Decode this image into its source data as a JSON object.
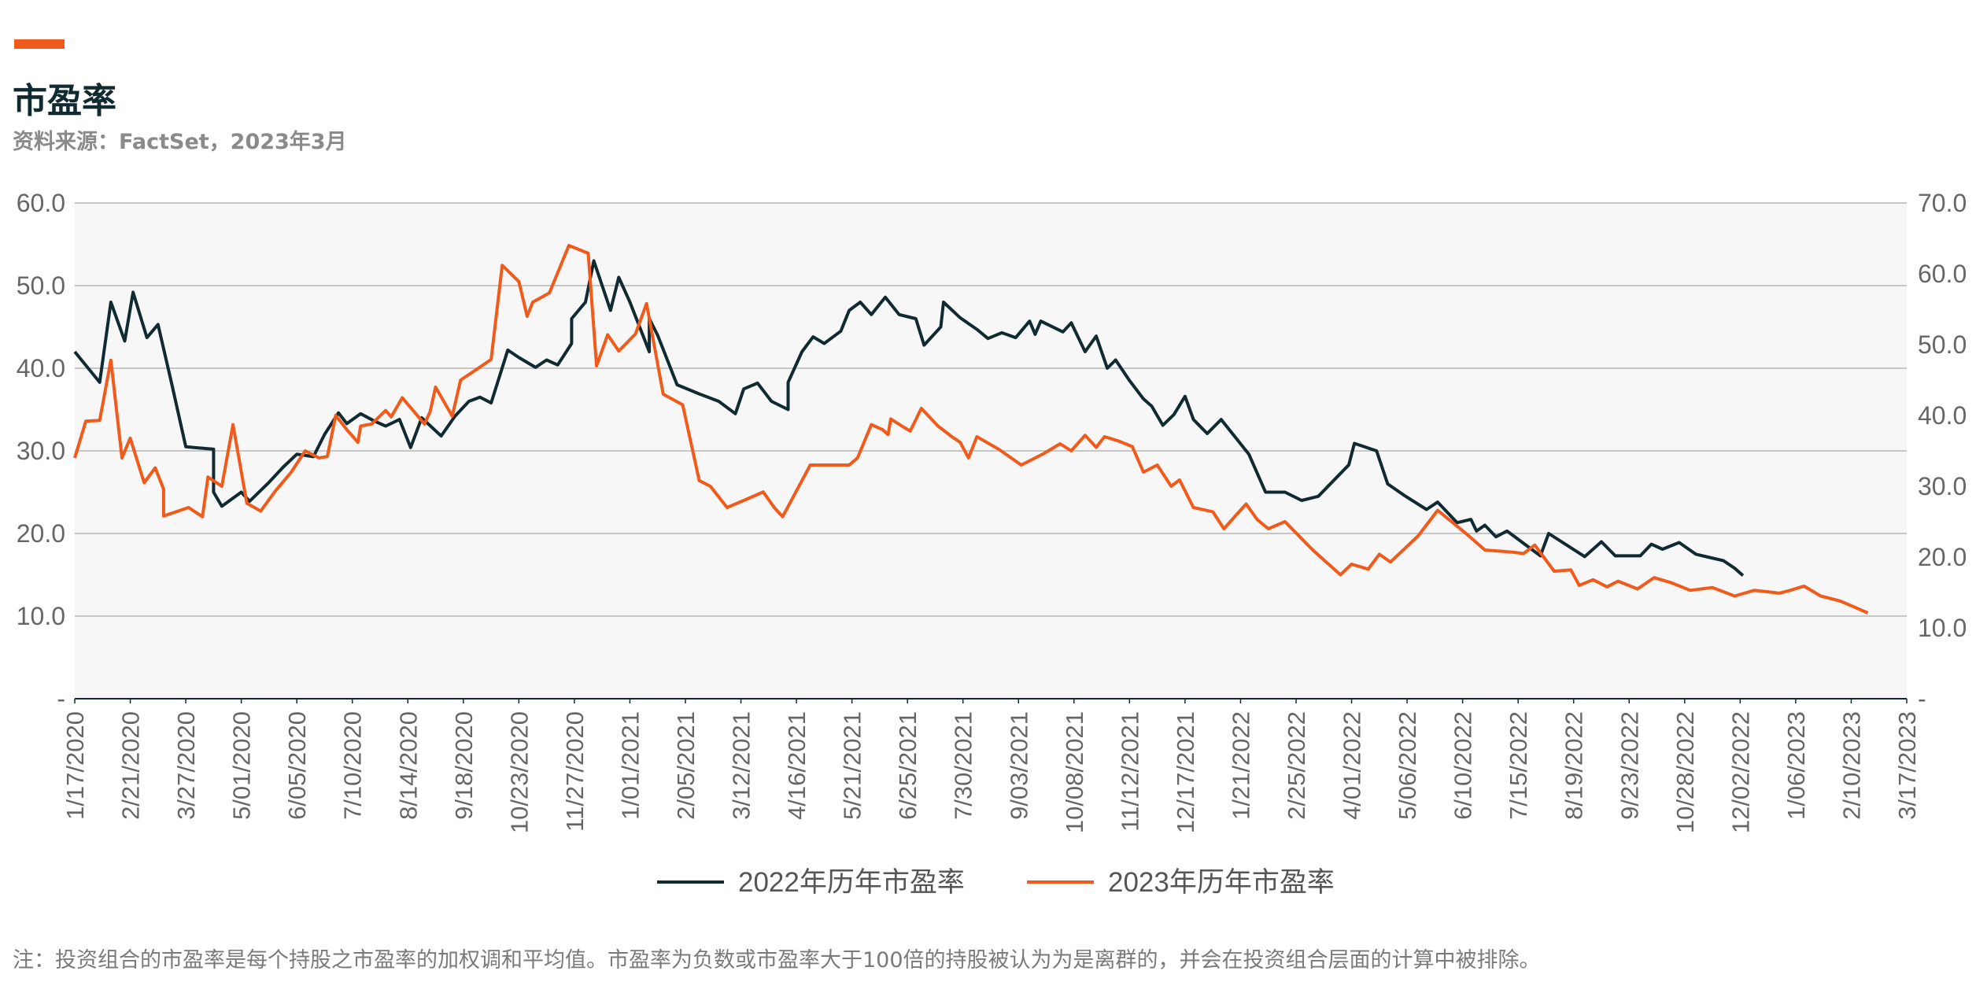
{
  "header": {
    "title": "市盈率",
    "source": "资料来源：FactSet，2023年3月"
  },
  "footnote": "注：投资组合的市盈率是每个持股之市盈率的加权调和平均值。市盈率为负数或市盈率大于100倍的持股被认为为是离群的，并会在投资组合层面的计算中被排除。",
  "colors": {
    "accent": "#f05a1a",
    "series_2022": "#0f2a30",
    "series_2023": "#f05a1a",
    "plot_bg": "#f6f7f6",
    "grid": "#b5b5b5"
  },
  "chart_data": {
    "type": "line",
    "x_ticks": [
      "1/17/2020",
      "2/21/2020",
      "3/27/2020",
      "5/01/2020",
      "6/05/2020",
      "7/10/2020",
      "8/14/2020",
      "9/18/2020",
      "10/23/2020",
      "11/27/2020",
      "1/01/2021",
      "2/05/2021",
      "3/12/2021",
      "4/16/2021",
      "5/21/2021",
      "6/25/2021",
      "7/30/2021",
      "9/03/2021",
      "10/08/2021",
      "11/12/2021",
      "12/17/2021",
      "1/21/2022",
      "2/25/2022",
      "4/01/2022",
      "5/06/2022",
      "6/10/2022",
      "7/15/2022",
      "8/19/2022",
      "9/23/2022",
      "10/28/2022",
      "12/02/2022",
      "1/06/2023",
      "2/10/2023",
      "3/17/2023"
    ],
    "y_left": {
      "range": [
        0,
        60
      ],
      "ticks": [
        "-",
        "10.0",
        "20.0",
        "30.0",
        "40.0",
        "50.0",
        "60.0"
      ]
    },
    "y_right": {
      "range": [
        0,
        70
      ],
      "ticks": [
        "-",
        "10.0",
        "20.0",
        "30.0",
        "40.0",
        "50.0",
        "60.0",
        "70.0"
      ]
    },
    "grid": true,
    "legend_position": "bottom-center",
    "series": [
      {
        "name": "2022年历年市盈率",
        "axis": "left",
        "color": "#0f2a30",
        "points": [
          [
            0,
            42
          ],
          [
            0.9,
            38.3
          ],
          [
            1.3,
            48
          ],
          [
            1.8,
            43.3
          ],
          [
            2.1,
            49.2
          ],
          [
            2.6,
            43.7
          ],
          [
            3.0,
            45.3
          ],
          [
            3.5,
            38
          ],
          [
            4.0,
            30.5
          ],
          [
            5.0,
            30.2
          ],
          [
            5.0,
            25
          ],
          [
            5.3,
            23.3
          ],
          [
            6.0,
            25
          ],
          [
            6.3,
            23.9
          ],
          [
            7.0,
            26.2
          ],
          [
            7.5,
            28
          ],
          [
            8.0,
            29.6
          ],
          [
            8.6,
            29.3
          ],
          [
            9.0,
            32
          ],
          [
            9.5,
            34.6
          ],
          [
            9.8,
            33.3
          ],
          [
            10.3,
            34.5
          ],
          [
            10.8,
            33.6
          ],
          [
            11.2,
            33
          ],
          [
            11.7,
            33.8
          ],
          [
            12.1,
            30.4
          ],
          [
            12.5,
            34
          ],
          [
            13.2,
            31.8
          ],
          [
            13.7,
            34.2
          ],
          [
            14.2,
            36
          ],
          [
            14.6,
            36.5
          ],
          [
            15.0,
            35.8
          ],
          [
            15.6,
            42.2
          ],
          [
            16.0,
            41.3
          ],
          [
            16.6,
            40.1
          ],
          [
            17.0,
            41
          ],
          [
            17.4,
            40.4
          ],
          [
            17.9,
            43
          ],
          [
            17.9,
            46
          ],
          [
            18.4,
            48
          ],
          [
            18.7,
            53
          ],
          [
            19.3,
            47
          ],
          [
            19.6,
            51
          ],
          [
            20.0,
            48
          ],
          [
            20.7,
            42
          ],
          [
            20.7,
            46
          ],
          [
            21.0,
            44
          ],
          [
            21.7,
            38
          ],
          [
            22.5,
            36.9
          ],
          [
            23.2,
            36
          ],
          [
            23.8,
            34.5
          ],
          [
            24.1,
            37.5
          ],
          [
            24.6,
            38.2
          ],
          [
            25.1,
            36
          ],
          [
            25.7,
            35
          ],
          [
            25.7,
            38.3
          ],
          [
            26.2,
            42
          ],
          [
            26.6,
            43.8
          ],
          [
            27.0,
            43
          ],
          [
            27.6,
            44.5
          ],
          [
            27.9,
            47
          ],
          [
            28.3,
            48
          ],
          [
            28.7,
            46.5
          ],
          [
            29.2,
            48.6
          ],
          [
            29.7,
            46.5
          ],
          [
            30.3,
            46
          ],
          [
            30.6,
            42.8
          ],
          [
            31.2,
            45
          ],
          [
            31.3,
            48
          ],
          [
            31.9,
            46.1
          ],
          [
            32.5,
            44.7
          ],
          [
            32.9,
            43.6
          ],
          [
            33.4,
            44.3
          ],
          [
            33.9,
            43.7
          ],
          [
            34.4,
            45.7
          ],
          [
            34.6,
            44.1
          ],
          [
            34.8,
            45.7
          ],
          [
            35.6,
            44.4
          ],
          [
            35.9,
            45.5
          ],
          [
            36.4,
            42
          ],
          [
            36.8,
            43.9
          ],
          [
            37.2,
            40
          ],
          [
            37.5,
            41
          ],
          [
            38.0,
            38.5
          ],
          [
            38.5,
            36.3
          ],
          [
            38.8,
            35.4
          ],
          [
            39.2,
            33.1
          ],
          [
            39.6,
            34.4
          ],
          [
            40.0,
            36.6
          ],
          [
            40.3,
            33.8
          ],
          [
            40.8,
            32.1
          ],
          [
            41.3,
            33.8
          ],
          [
            42.3,
            29.6
          ],
          [
            42.9,
            25
          ],
          [
            43.6,
            25
          ],
          [
            44.2,
            24
          ],
          [
            44.8,
            24.5
          ],
          [
            45.9,
            28.3
          ],
          [
            46.1,
            30.9
          ],
          [
            46.9,
            30
          ],
          [
            47.3,
            26
          ],
          [
            47.9,
            24.6
          ],
          [
            48.7,
            22.9
          ],
          [
            49.1,
            23.8
          ],
          [
            49.8,
            21.3
          ],
          [
            50.3,
            21.7
          ],
          [
            50.5,
            20.3
          ],
          [
            50.8,
            21
          ],
          [
            51.2,
            19.6
          ],
          [
            51.6,
            20.3
          ],
          [
            52.8,
            17.3
          ],
          [
            53.1,
            20
          ],
          [
            54.4,
            17.2
          ],
          [
            55.0,
            19
          ],
          [
            55.5,
            17.3
          ],
          [
            56.4,
            17.3
          ],
          [
            56.8,
            18.7
          ],
          [
            57.2,
            18.1
          ],
          [
            57.8,
            18.9
          ],
          [
            58.4,
            17.5
          ],
          [
            58.9,
            17.1
          ],
          [
            59.4,
            16.7
          ],
          [
            59.8,
            15.8
          ],
          [
            60.1,
            14.9
          ]
        ]
      },
      {
        "name": "2023年历年市盈率",
        "axis": "right",
        "color": "#f05a1a",
        "points": [
          [
            0,
            34
          ],
          [
            0.4,
            39.2
          ],
          [
            0.9,
            39.3
          ],
          [
            1.3,
            47.8
          ],
          [
            1.7,
            34
          ],
          [
            2.0,
            36.8
          ],
          [
            2.5,
            30.5
          ],
          [
            2.9,
            32.6
          ],
          [
            3.2,
            29.6
          ],
          [
            3.2,
            25.8
          ],
          [
            4.1,
            27
          ],
          [
            4.6,
            25.7
          ],
          [
            4.8,
            31.3
          ],
          [
            5.3,
            30
          ],
          [
            5.7,
            38.7
          ],
          [
            6.2,
            27.6
          ],
          [
            6.7,
            26.5
          ],
          [
            7.2,
            29.2
          ],
          [
            7.8,
            32
          ],
          [
            8.3,
            35
          ],
          [
            8.8,
            34
          ],
          [
            9.1,
            34.2
          ],
          [
            9.4,
            40
          ],
          [
            9.8,
            38
          ],
          [
            10.2,
            36.2
          ],
          [
            10.3,
            38.5
          ],
          [
            10.7,
            38.8
          ],
          [
            11.2,
            40.7
          ],
          [
            11.4,
            39.8
          ],
          [
            11.8,
            42.5
          ],
          [
            12.6,
            38.8
          ],
          [
            12.8,
            40.5
          ],
          [
            13.0,
            44
          ],
          [
            13.6,
            39.9
          ],
          [
            13.9,
            45
          ],
          [
            14.4,
            46.3
          ],
          [
            15.0,
            47.9
          ],
          [
            15.4,
            61.2
          ],
          [
            16.0,
            58.9
          ],
          [
            16.3,
            54
          ],
          [
            16.5,
            56
          ],
          [
            17.1,
            57.3
          ],
          [
            17.8,
            64
          ],
          [
            18.5,
            62.9
          ],
          [
            18.8,
            47
          ],
          [
            19.2,
            51.4
          ],
          [
            19.6,
            49.1
          ],
          [
            20.2,
            51.5
          ],
          [
            20.6,
            55.8
          ],
          [
            21.2,
            43
          ],
          [
            21.9,
            41.5
          ],
          [
            22.5,
            30.8
          ],
          [
            22.9,
            30
          ],
          [
            23.5,
            27
          ],
          [
            24.4,
            28.5
          ],
          [
            24.8,
            29.2
          ],
          [
            25.2,
            27
          ],
          [
            25.5,
            25.7
          ],
          [
            26.5,
            33
          ],
          [
            27.5,
            33
          ],
          [
            27.9,
            33
          ],
          [
            28.2,
            34
          ],
          [
            28.7,
            38.7
          ],
          [
            29.1,
            38
          ],
          [
            29.3,
            37.3
          ],
          [
            29.4,
            39.5
          ],
          [
            29.8,
            38.5
          ],
          [
            30.1,
            37.8
          ],
          [
            30.5,
            41
          ],
          [
            31.1,
            38.5
          ],
          [
            31.6,
            37
          ],
          [
            31.9,
            36.2
          ],
          [
            32.2,
            34
          ],
          [
            32.5,
            37
          ],
          [
            33.3,
            35.2
          ],
          [
            34.1,
            33
          ],
          [
            34.9,
            34.6
          ],
          [
            35.5,
            36
          ],
          [
            35.9,
            35
          ],
          [
            36.4,
            37.2
          ],
          [
            36.8,
            35.5
          ],
          [
            37.1,
            37
          ],
          [
            37.6,
            36.4
          ],
          [
            38.1,
            35.6
          ],
          [
            38.5,
            32
          ],
          [
            39.0,
            33
          ],
          [
            39.2,
            31.8
          ],
          [
            39.5,
            30
          ],
          [
            39.8,
            30.9
          ],
          [
            40.3,
            27
          ],
          [
            41.0,
            26.4
          ],
          [
            41.4,
            24
          ],
          [
            42.2,
            27.5
          ],
          [
            42.6,
            25.3
          ],
          [
            43.0,
            24
          ],
          [
            43.6,
            25
          ],
          [
            44.6,
            21
          ],
          [
            45.6,
            17.5
          ],
          [
            46.0,
            19
          ],
          [
            46.6,
            18.3
          ],
          [
            47.0,
            20.4
          ],
          [
            47.4,
            19.3
          ],
          [
            48.4,
            23
          ],
          [
            49.1,
            26.6
          ],
          [
            50.1,
            23.4
          ],
          [
            50.8,
            21
          ],
          [
            51.8,
            20.7
          ],
          [
            52.2,
            20.5
          ],
          [
            52.6,
            21.7
          ],
          [
            53.3,
            18
          ],
          [
            53.9,
            18.2
          ],
          [
            54.2,
            16
          ],
          [
            54.7,
            16.8
          ],
          [
            55.2,
            15.8
          ],
          [
            55.6,
            16.6
          ],
          [
            56.3,
            15.5
          ],
          [
            56.9,
            17.1
          ],
          [
            57.5,
            16.4
          ],
          [
            58.2,
            15.3
          ],
          [
            59.0,
            15.7
          ],
          [
            59.8,
            14.5
          ],
          [
            60.5,
            15.3
          ],
          [
            61.0,
            15.1
          ],
          [
            61.4,
            14.9
          ],
          [
            61.8,
            15.3
          ],
          [
            62.3,
            15.9
          ],
          [
            62.9,
            14.5
          ],
          [
            63.3,
            14.1
          ],
          [
            63.6,
            13.8
          ],
          [
            64.2,
            12.8
          ],
          [
            64.6,
            12.1
          ]
        ]
      }
    ]
  }
}
